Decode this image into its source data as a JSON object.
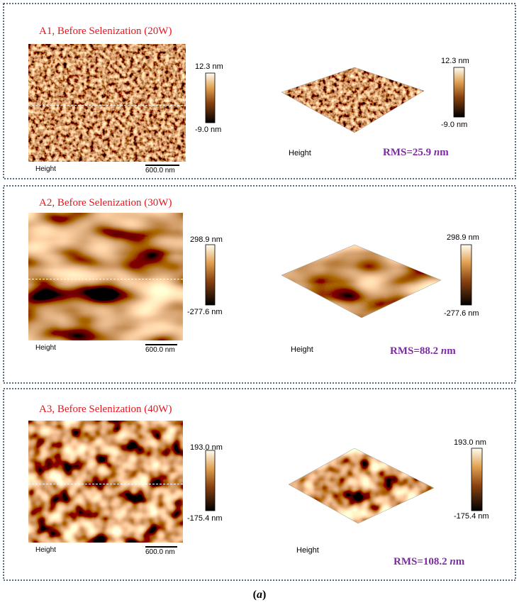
{
  "panels": [
    {
      "title": "A1, Before Selenization (20W)",
      "image": {
        "colorbar_max": "12.3 nm",
        "colorbar_min": "-9.0 nm",
        "channel": "Height",
        "scale_bar": "600.0 nm"
      },
      "surface_3d": {
        "colorbar_max": "12.3 nm",
        "colorbar_min": "-9.0 nm",
        "channel": "Height"
      },
      "rms": [
        "RMS=25.9 ",
        "n",
        "m"
      ]
    },
    {
      "title": "A2, Before Selenization (30W)",
      "image": {
        "colorbar_max": "298.9 nm",
        "colorbar_min": "-277.6 nm",
        "channel": "Height",
        "scale_bar": "600.0 nm"
      },
      "surface_3d": {
        "colorbar_max": "298.9 nm",
        "colorbar_min": "-277.6 nm",
        "channel": "Height"
      },
      "rms": [
        "RMS=88.2 ",
        "n",
        "m"
      ]
    },
    {
      "title": "A3, Before Selenization (40W)",
      "image": {
        "colorbar_max": "193.0 nm",
        "colorbar_min": "-175.4 nm",
        "channel": "Height",
        "scale_bar": "600.0 nm"
      },
      "surface_3d": {
        "colorbar_max": "193.0 nm",
        "colorbar_min": "-175.4 nm",
        "channel": "Height"
      },
      "rms": [
        "RMS=108.2 ",
        "n",
        "m"
      ]
    }
  ],
  "caption": [
    "(",
    "a",
    ")"
  ]
}
